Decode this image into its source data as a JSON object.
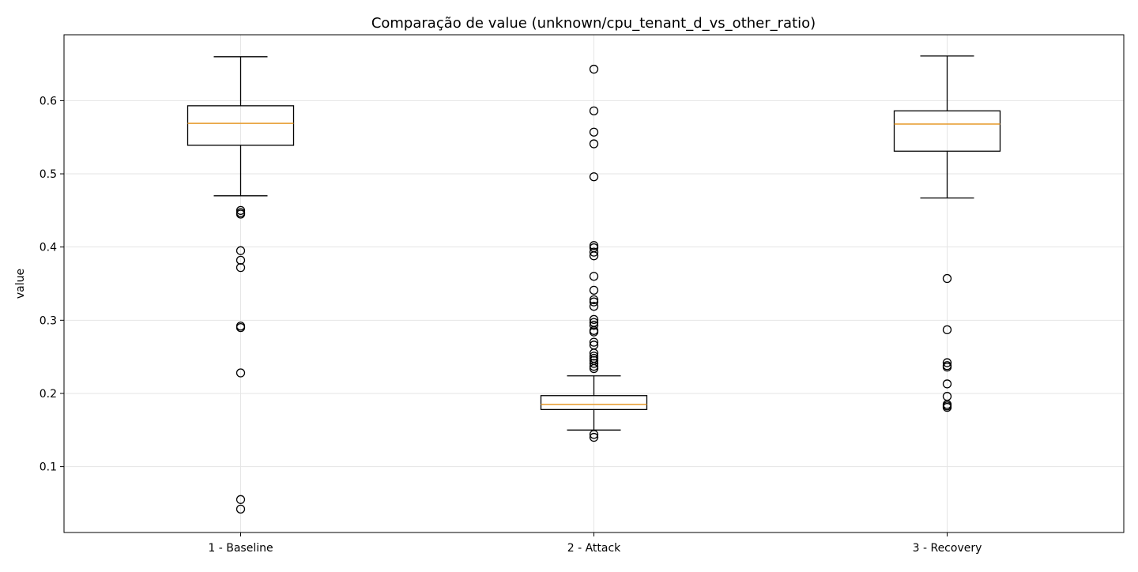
{
  "chart_data": {
    "type": "boxplot",
    "title": "Comparação de value (unknown/cpu_tenant_d_vs_other_ratio)",
    "xlabel": "",
    "ylabel": "value",
    "ylim": [
      0.01,
      0.69
    ],
    "yticks": [
      0.1,
      0.2,
      0.3,
      0.4,
      0.5,
      0.6
    ],
    "ytick_labels": [
      "0.1",
      "0.2",
      "0.3",
      "0.4",
      "0.5",
      "0.6"
    ],
    "grid": true,
    "colors": {
      "box": "#000000",
      "median": "#e69a2a",
      "grid": "#e5e5e5"
    },
    "categories": [
      "1 - Baseline",
      "2 - Attack",
      "3 - Recovery"
    ],
    "boxes": [
      {
        "category": "1 - Baseline",
        "whisker_low": 0.47,
        "q1": 0.539,
        "median": 0.569,
        "q3": 0.593,
        "whisker_high": 0.66,
        "outliers": [
          0.45,
          0.447,
          0.445,
          0.395,
          0.382,
          0.372,
          0.292,
          0.29,
          0.228,
          0.055,
          0.042
        ]
      },
      {
        "category": "2 - Attack",
        "whisker_low": 0.15,
        "q1": 0.178,
        "median": 0.185,
        "q3": 0.197,
        "whisker_high": 0.224,
        "outliers": [
          0.643,
          0.586,
          0.557,
          0.541,
          0.496,
          0.402,
          0.399,
          0.393,
          0.388,
          0.36,
          0.341,
          0.328,
          0.325,
          0.319,
          0.301,
          0.297,
          0.293,
          0.286,
          0.284,
          0.27,
          0.266,
          0.255,
          0.251,
          0.248,
          0.245,
          0.241,
          0.237,
          0.234,
          0.144,
          0.14
        ]
      },
      {
        "category": "3 - Recovery",
        "whisker_low": 0.467,
        "q1": 0.531,
        "median": 0.568,
        "q3": 0.586,
        "whisker_high": 0.661,
        "outliers": [
          0.357,
          0.287,
          0.242,
          0.238,
          0.236,
          0.213,
          0.196,
          0.185,
          0.183,
          0.181
        ]
      }
    ]
  }
}
